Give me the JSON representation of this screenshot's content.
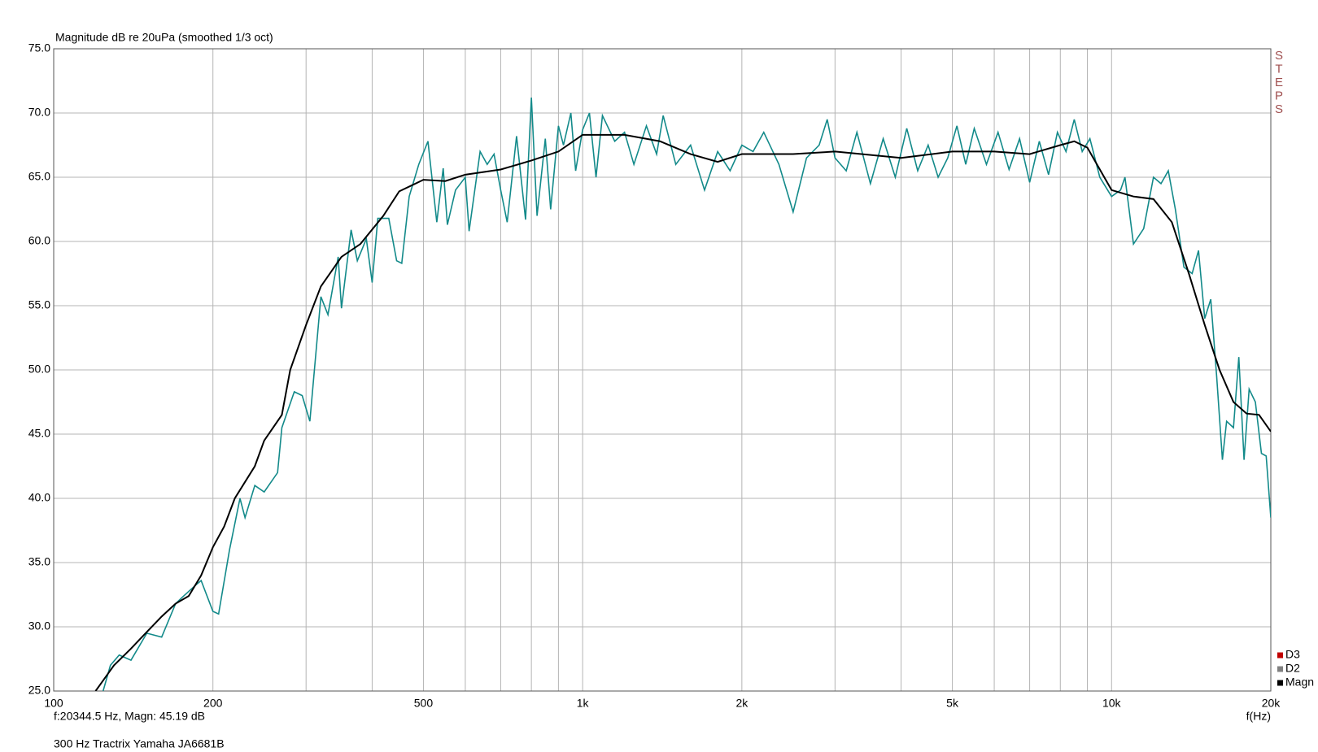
{
  "chart_data": {
    "type": "line",
    "title": "300 Hz Tractrix Yamaha JA6681B",
    "ylabel": "Magnitude dB re 20uPa (smoothed  1/3 oct)",
    "xlabel": "f(Hz)",
    "side_label": "STEPS",
    "cursor_readout": "f:20344.5 Hz, Magn: 45.19 dB",
    "xscale": "log",
    "grid": true,
    "xlim": [
      100,
      20000
    ],
    "ylim": [
      25,
      75
    ],
    "xticks": [
      100,
      200,
      500,
      {
        "value": 1000,
        "label": "1k"
      },
      {
        "value": 2000,
        "label": "2k"
      },
      {
        "value": 5000,
        "label": "5k"
      },
      {
        "value": 10000,
        "label": "10k"
      },
      {
        "value": 20000,
        "label": "20k"
      }
    ],
    "xminor": [
      300,
      400,
      600,
      700,
      800,
      900,
      3000,
      4000,
      6000,
      7000,
      8000,
      9000
    ],
    "yticks": [
      {
        "value": 25,
        "label": "25.0"
      },
      {
        "value": 30,
        "label": "30.0"
      },
      {
        "value": 35,
        "label": "35.0"
      },
      {
        "value": 40,
        "label": "40.0"
      },
      {
        "value": 45,
        "label": "45.0"
      },
      {
        "value": 50,
        "label": "50.0"
      },
      {
        "value": 55,
        "label": "55.0"
      },
      {
        "value": 60,
        "label": "60.0"
      },
      {
        "value": 65,
        "label": "65.0"
      },
      {
        "value": 70,
        "label": "70.0"
      },
      {
        "value": 75,
        "label": "75.0"
      }
    ],
    "legend_position": "lower right",
    "legend": [
      {
        "name": "D3",
        "color": "#c00000"
      },
      {
        "name": "D2",
        "color": "#808080"
      },
      {
        "name": "Magn",
        "color": "#000000"
      }
    ],
    "series": [
      {
        "color": "#138a8a",
        "x": [
          124,
          128,
          133,
          140,
          150,
          160,
          170,
          175,
          185,
          190,
          200,
          205,
          215,
          225,
          230,
          240,
          250,
          265,
          270,
          285,
          295,
          305,
          320,
          330,
          345,
          350,
          365,
          375,
          390,
          400,
          410,
          430,
          445,
          455,
          470,
          490,
          510,
          530,
          545,
          555,
          575,
          600,
          610,
          640,
          660,
          680,
          700,
          720,
          750,
          780,
          800,
          820,
          850,
          870,
          900,
          920,
          950,
          970,
          1000,
          1030,
          1060,
          1090,
          1150,
          1200,
          1250,
          1320,
          1380,
          1420,
          1500,
          1600,
          1700,
          1800,
          1900,
          2000,
          2100,
          2200,
          2350,
          2500,
          2650,
          2800,
          2900,
          3000,
          3150,
          3300,
          3500,
          3700,
          3900,
          4100,
          4300,
          4500,
          4700,
          4900,
          5100,
          5300,
          5500,
          5800,
          6100,
          6400,
          6700,
          7000,
          7300,
          7600,
          7900,
          8200,
          8500,
          8800,
          9100,
          9500,
          10000,
          10400,
          10600,
          11000,
          11500,
          12000,
          12400,
          12800,
          13200,
          13700,
          14200,
          14600,
          15000,
          15400,
          15800,
          16200,
          16500,
          17000,
          17400,
          17800,
          18200,
          18700,
          19200,
          19600,
          20000
        ],
        "values": [
          25.0,
          27.0,
          27.8,
          27.4,
          29.5,
          29.2,
          31.8,
          32.3,
          33.2,
          33.6,
          31.2,
          31.0,
          36.0,
          40.0,
          38.5,
          41.0,
          40.5,
          42.0,
          45.5,
          48.3,
          48.0,
          46.0,
          55.7,
          54.3,
          58.8,
          54.8,
          60.9,
          58.5,
          60.2,
          56.8,
          61.8,
          61.8,
          58.5,
          58.3,
          63.5,
          66.0,
          67.8,
          61.5,
          65.7,
          61.3,
          64.0,
          65.0,
          60.8,
          67.0,
          66.0,
          66.8,
          64.0,
          61.5,
          68.2,
          61.7,
          71.2,
          62.0,
          68.0,
          62.5,
          69.0,
          67.5,
          70.0,
          65.5,
          68.7,
          70.0,
          65.0,
          69.8,
          67.8,
          68.5,
          66.0,
          69.0,
          66.8,
          69.8,
          66.0,
          67.5,
          64.0,
          67.0,
          65.5,
          67.5,
          67.0,
          68.5,
          66.0,
          62.3,
          66.5,
          67.5,
          69.5,
          66.5,
          65.5,
          68.5,
          64.5,
          68.0,
          65.0,
          68.8,
          65.5,
          67.5,
          65.0,
          66.5,
          69.0,
          66.0,
          68.8,
          66.0,
          68.5,
          65.6,
          68.0,
          64.6,
          67.8,
          65.2,
          68.5,
          67.0,
          69.5,
          67.0,
          68.0,
          65.0,
          63.5,
          64.0,
          65.0,
          59.8,
          61.0,
          65.0,
          64.5,
          65.5,
          62.5,
          58.0,
          57.5,
          59.3,
          54.0,
          55.5,
          49.5,
          43.0,
          46.0,
          45.5,
          51.0,
          43.0,
          48.5,
          47.5,
          43.5,
          43.3,
          38.5
        ]
      },
      {
        "color": "#000000",
        "x": [
          120,
          130,
          140,
          150,
          160,
          170,
          180,
          190,
          200,
          210,
          220,
          240,
          250,
          270,
          280,
          300,
          320,
          350,
          380,
          420,
          450,
          500,
          550,
          600,
          700,
          800,
          900,
          1000,
          1200,
          1400,
          1600,
          1800,
          2000,
          2500,
          3000,
          4000,
          5000,
          6000,
          7000,
          8000,
          8500,
          9000,
          10000,
          11000,
          12000,
          13000,
          14000,
          15000,
          16000,
          17000,
          18000,
          19000,
          20000
        ],
        "values": [
          25.0,
          27.0,
          28.3,
          29.6,
          30.8,
          31.8,
          32.4,
          34.0,
          36.2,
          37.8,
          40.0,
          42.5,
          44.5,
          46.5,
          50.0,
          53.5,
          56.5,
          58.8,
          59.8,
          62.0,
          63.9,
          64.8,
          64.7,
          65.2,
          65.6,
          66.3,
          67.0,
          68.3,
          68.3,
          67.8,
          66.8,
          66.2,
          66.8,
          66.8,
          67.0,
          66.5,
          67.0,
          67.0,
          66.8,
          67.5,
          67.8,
          67.3,
          64.0,
          63.5,
          63.3,
          61.5,
          57.5,
          53.5,
          50.0,
          47.5,
          46.6,
          46.5,
          45.2
        ]
      }
    ]
  }
}
